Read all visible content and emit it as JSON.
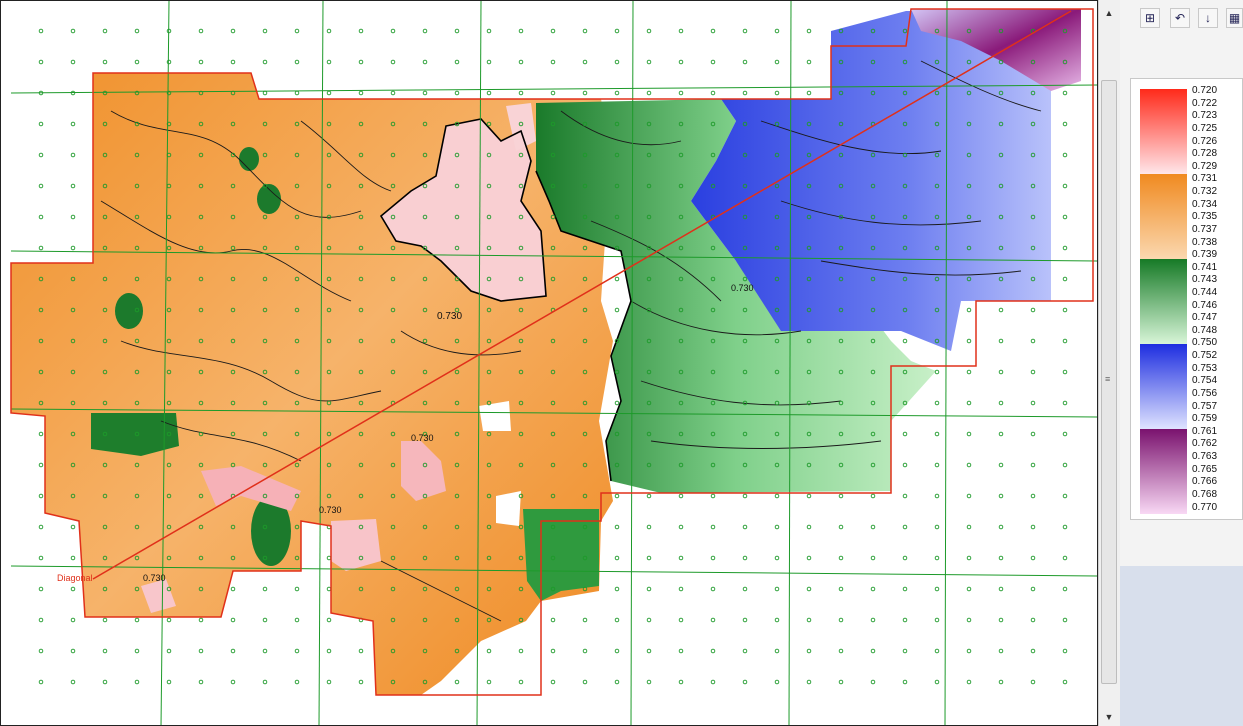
{
  "map": {
    "contour_labels": [
      "0.730",
      "0.730",
      "0.730",
      "0.730",
      "0.730"
    ],
    "line_label": "Diagonal",
    "colors": {
      "red_group": "#f03a2a",
      "orange_group": "#f0902a",
      "green_group": "#1a7a2a",
      "blue_group": "#2a3fe0",
      "purple_group": "#8a1a7a",
      "grid_lines": "#1d9a2a",
      "boundary": "#e0301a"
    }
  },
  "toolbar": {
    "buttons": [
      {
        "name": "color-table-icon",
        "glyph": "⊞"
      },
      {
        "name": "undo-icon",
        "glyph": "↶"
      },
      {
        "name": "sort-icon",
        "glyph": "↓"
      },
      {
        "name": "palette-icon",
        "glyph": "▦"
      }
    ]
  },
  "legend": {
    "labels": [
      "0.720",
      "0.722",
      "0.723",
      "0.725",
      "0.726",
      "0.728",
      "0.729",
      "0.731",
      "0.732",
      "0.734",
      "0.735",
      "0.737",
      "0.738",
      "0.739",
      "0.741",
      "0.743",
      "0.744",
      "0.746",
      "0.747",
      "0.748",
      "0.750",
      "0.752",
      "0.753",
      "0.754",
      "0.756",
      "0.757",
      "0.759",
      "0.761",
      "0.762",
      "0.763",
      "0.765",
      "0.766",
      "0.768",
      "0.770"
    ],
    "bands": [
      {
        "from": "#ff2a1a",
        "to": "#ffe6ea"
      },
      {
        "from": "#f08a20",
        "to": "#fbd8b0"
      },
      {
        "from": "#167a26",
        "to": "#d8f5d8"
      },
      {
        "from": "#1e2ee0",
        "to": "#dfe3ff"
      },
      {
        "from": "#7a126e",
        "to": "#f8d8f4"
      }
    ]
  },
  "scrollbar": {
    "up": "▲",
    "down": "▼",
    "grip": "≡"
  }
}
